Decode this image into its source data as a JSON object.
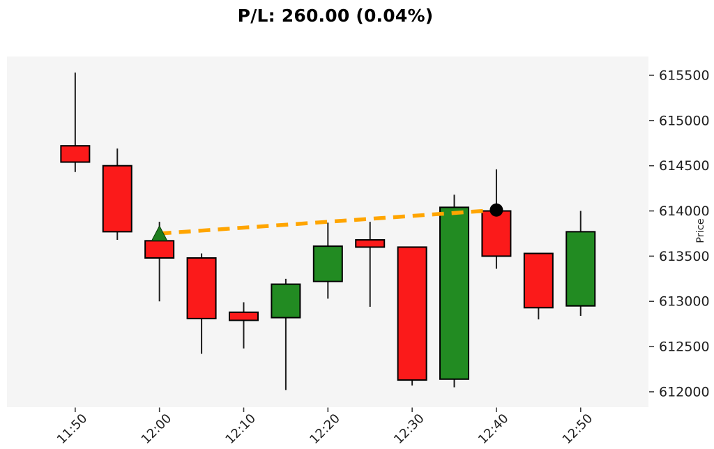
{
  "title": "P/L: 260.00 (0.04%)",
  "colors": {
    "figure_background": "#FFFFFF",
    "plot_background": "#F5F5F5",
    "up_candle": "#228B22",
    "down_candle": "#FB1A1A",
    "candle_edge": "#000000",
    "wick": "#1C1C1C",
    "trade_line": "#FFA500",
    "entry_marker": "#1E7D1E",
    "exit_marker": "#000000",
    "tick_text": "#1F1F1F",
    "title_text": "#000000"
  },
  "chart_data": {
    "type": "candlestick",
    "title": "P/L: 260.00 (0.04%)",
    "xlabel": "",
    "ylabel": "Price",
    "y_axis_side": "right",
    "grid": false,
    "legend": "none",
    "x_tick_labels": [
      "11:50",
      "12:00",
      "12:10",
      "12:20",
      "12:30",
      "12:40",
      "12:50"
    ],
    "x_tick_indices": [
      0,
      2,
      4,
      6,
      8,
      10,
      12
    ],
    "y_tick_values": [
      612000,
      612500,
      613000,
      613500,
      614000,
      614500,
      615000,
      615500
    ],
    "ylim": [
      611830,
      615708
    ],
    "xlim": [
      -1.62,
      13.61
    ],
    "candles": [
      {
        "time": "11:50",
        "open": 614720,
        "high": 615530,
        "low": 614430,
        "close": 614540
      },
      {
        "time": "11:55",
        "open": 614500,
        "high": 614690,
        "low": 613680,
        "close": 613770
      },
      {
        "time": "12:00",
        "open": 613670,
        "high": 613880,
        "low": 613000,
        "close": 613480
      },
      {
        "time": "12:05",
        "open": 613480,
        "high": 613530,
        "low": 612420,
        "close": 612810
      },
      {
        "time": "12:10",
        "open": 612880,
        "high": 612990,
        "low": 612480,
        "close": 612790
      },
      {
        "time": "12:15",
        "open": 612820,
        "high": 613250,
        "low": 612020,
        "close": 613190
      },
      {
        "time": "12:20",
        "open": 613220,
        "high": 613870,
        "low": 613030,
        "close": 613610
      },
      {
        "time": "12:25",
        "open": 613680,
        "high": 613880,
        "low": 612940,
        "close": 613600
      },
      {
        "time": "12:30",
        "open": 613600,
        "high": 613600,
        "low": 612070,
        "close": 612130
      },
      {
        "time": "12:35",
        "open": 612140,
        "high": 614180,
        "low": 612050,
        "close": 614040
      },
      {
        "time": "12:40",
        "open": 614000,
        "high": 614460,
        "low": 613360,
        "close": 613500
      },
      {
        "time": "12:45",
        "open": 613530,
        "high": 613530,
        "low": 612800,
        "close": 612930
      },
      {
        "time": "12:50",
        "open": 612950,
        "high": 614000,
        "low": 612840,
        "close": 613770
      }
    ],
    "trade": {
      "line_style": "dashed",
      "line_color": "#FFA500",
      "entry": {
        "time": "12:00",
        "price": 613750,
        "marker": "triangle-up",
        "color": "#1E7D1E"
      },
      "exit": {
        "time": "12:40",
        "price": 614010,
        "marker": "circle",
        "color": "#000000"
      },
      "pl_value": "260.00",
      "pl_percent": "0.04%"
    }
  }
}
